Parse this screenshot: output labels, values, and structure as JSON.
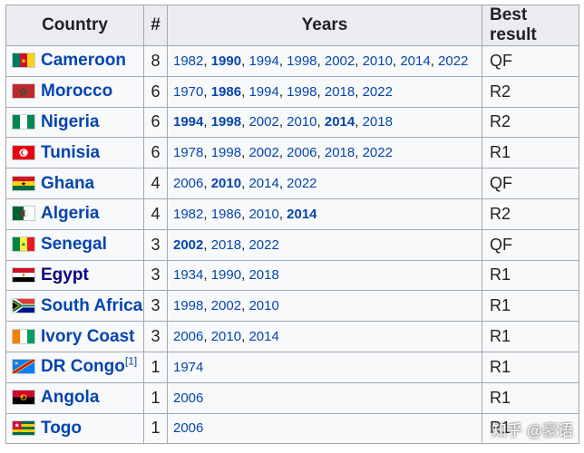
{
  "headers": {
    "country": "Country",
    "count": "#",
    "years": "Years",
    "best": "Best result"
  },
  "rows": [
    {
      "flag": "cameroon-flag-icon",
      "country": "Cameroon",
      "count": "8",
      "years": [
        [
          "1982",
          false
        ],
        [
          "1990",
          true
        ],
        [
          "1994",
          false
        ],
        [
          "1998",
          false
        ],
        [
          "2002",
          false
        ],
        [
          "2010",
          false
        ],
        [
          "2014",
          false
        ],
        [
          "2022",
          false
        ]
      ],
      "best": "QF"
    },
    {
      "flag": "morocco-flag-icon",
      "country": "Morocco",
      "count": "6",
      "years": [
        [
          "1970",
          false
        ],
        [
          "1986",
          true
        ],
        [
          "1994",
          false
        ],
        [
          "1998",
          false
        ],
        [
          "2018",
          false
        ],
        [
          "2022",
          false
        ]
      ],
      "best": "R2"
    },
    {
      "flag": "nigeria-flag-icon",
      "country": "Nigeria",
      "count": "6",
      "years": [
        [
          "1994",
          true
        ],
        [
          "1998",
          true
        ],
        [
          "2002",
          false
        ],
        [
          "2010",
          false
        ],
        [
          "2014",
          true
        ],
        [
          "2018",
          false
        ]
      ],
      "best": "R2"
    },
    {
      "flag": "tunisia-flag-icon",
      "country": "Tunisia",
      "count": "6",
      "years": [
        [
          "1978",
          false
        ],
        [
          "1998",
          false
        ],
        [
          "2002",
          false
        ],
        [
          "2006",
          false
        ],
        [
          "2018",
          false
        ],
        [
          "2022",
          false
        ]
      ],
      "best": "R1"
    },
    {
      "flag": "ghana-flag-icon",
      "country": "Ghana",
      "count": "4",
      "years": [
        [
          "2006",
          false
        ],
        [
          "2010",
          true
        ],
        [
          "2014",
          false
        ],
        [
          "2022",
          false
        ]
      ],
      "best": "QF"
    },
    {
      "flag": "algeria-flag-icon",
      "country": "Algeria",
      "count": "4",
      "years": [
        [
          "1982",
          false
        ],
        [
          "1986",
          false
        ],
        [
          "2010",
          false
        ],
        [
          "2014",
          true
        ]
      ],
      "best": "R2"
    },
    {
      "flag": "senegal-flag-icon",
      "country": "Senegal",
      "count": "3",
      "years": [
        [
          "2002",
          true
        ],
        [
          "2018",
          false
        ],
        [
          "2022",
          false
        ]
      ],
      "best": "QF"
    },
    {
      "flag": "egypt-flag-icon",
      "country": "Egypt",
      "count": "3",
      "years": [
        [
          "1934",
          false
        ],
        [
          "1990",
          false
        ],
        [
          "2018",
          false
        ]
      ],
      "best": "R1"
    },
    {
      "flag": "south-africa-flag-icon",
      "country": "South Africa",
      "count": "3",
      "years": [
        [
          "1998",
          false
        ],
        [
          "2002",
          false
        ],
        [
          "2010",
          false
        ]
      ],
      "best": "R1"
    },
    {
      "flag": "ivory-coast-flag-icon",
      "country": "Ivory Coast",
      "count": "3",
      "years": [
        [
          "2006",
          false
        ],
        [
          "2010",
          false
        ],
        [
          "2014",
          false
        ]
      ],
      "best": "R1"
    },
    {
      "flag": "dr-congo-flag-icon",
      "country": "DR Congo",
      "note": "[1]",
      "count": "1",
      "years": [
        [
          "1974",
          false
        ]
      ],
      "best": "R1"
    },
    {
      "flag": "angola-flag-icon",
      "country": "Angola",
      "count": "1",
      "years": [
        [
          "2006",
          false
        ]
      ],
      "best": "R1"
    },
    {
      "flag": "togo-flag-icon",
      "country": "Togo",
      "count": "1",
      "years": [
        [
          "2006",
          false
        ]
      ],
      "best": "R1"
    }
  ],
  "watermark": "知乎 @豪语",
  "colors": {
    "link": "#0645ad",
    "header_bg": "#eaecf0",
    "cell_bg": "#f8f9fa",
    "border": "#a2a9b1"
  }
}
